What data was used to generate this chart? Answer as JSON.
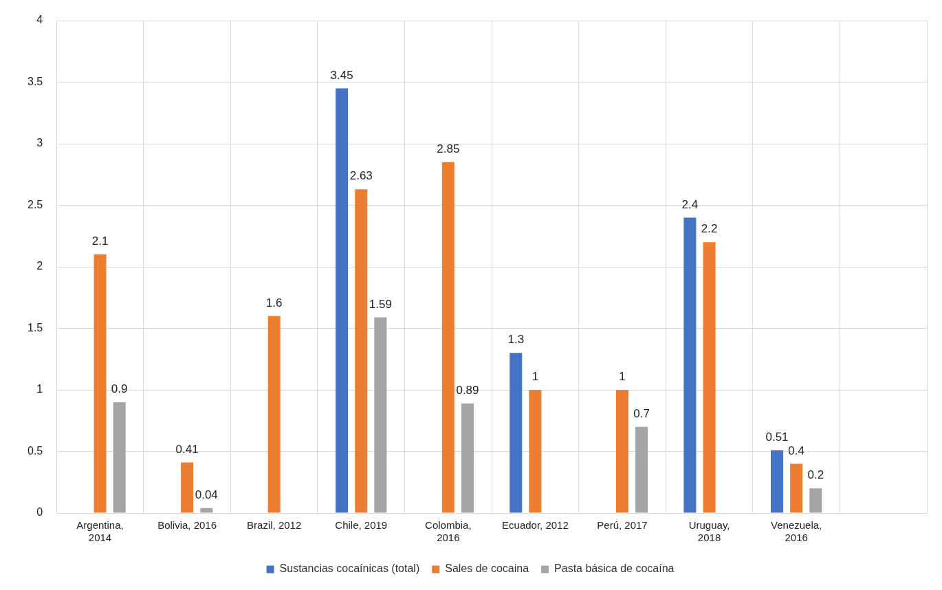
{
  "chart_data": {
    "type": "bar",
    "categories": [
      "Argentina, 2014",
      "Bolivia, 2016",
      "Brazil, 2012",
      "Chile, 2019",
      "Colombia, 2016",
      "Ecuador, 2012",
      "Perú, 2017",
      "Uruguay, 2018",
      "Venezuela, 2016",
      null
    ],
    "series": [
      {
        "name": "Sustancias cocaínicas (total)",
        "color": "#4472c4",
        "values": [
          null,
          null,
          null,
          3.45,
          null,
          1.3,
          null,
          2.4,
          0.51,
          null
        ]
      },
      {
        "name": "Sales de cocaina",
        "color": "#ed7d31",
        "values": [
          2.1,
          0.41,
          1.6,
          2.63,
          2.85,
          1,
          1,
          2.2,
          0.4,
          null
        ]
      },
      {
        "name": "Pasta básica de cocaína",
        "color": "#a5a5a5",
        "values": [
          0.9,
          0.04,
          null,
          1.59,
          0.89,
          null,
          0.7,
          null,
          0.2,
          null
        ]
      }
    ],
    "ylim": [
      0,
      4
    ],
    "yticks": [
      0,
      0.5,
      1,
      1.5,
      2,
      2.5,
      3,
      3.5,
      4
    ],
    "grid": true,
    "legend": "bottom",
    "data_labels": true
  }
}
